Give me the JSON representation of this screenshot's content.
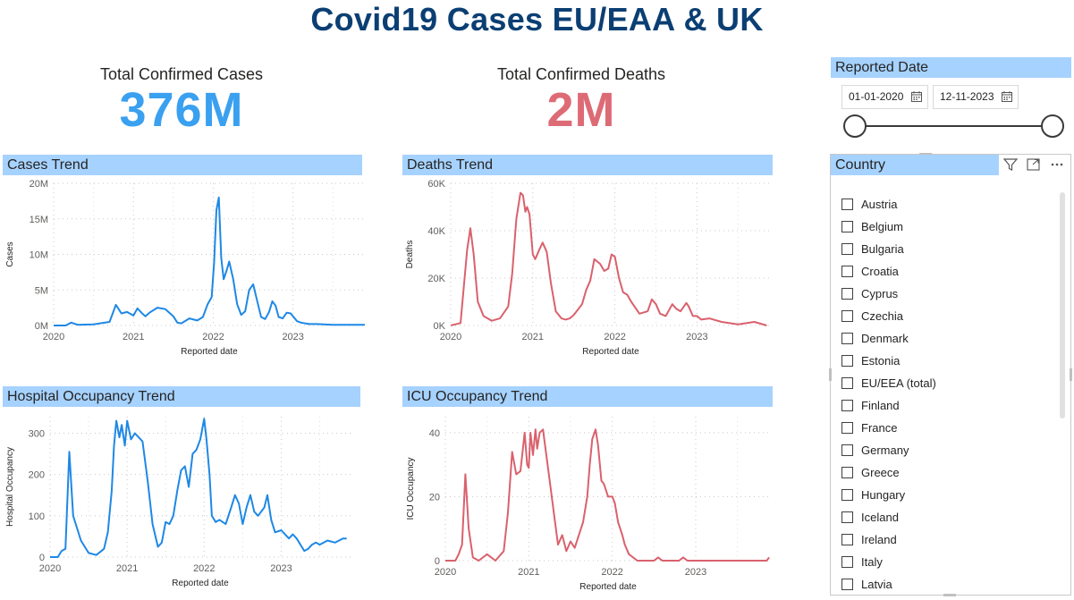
{
  "report_title": "Covid19 Cases EU/EAA & UK",
  "kpis": {
    "cases": {
      "label": "Total Confirmed Cases",
      "value": "376M",
      "color": "#3aa0f0"
    },
    "deaths": {
      "label": "Total Confirmed Deaths",
      "value": "2M",
      "color": "#dd6b76"
    }
  },
  "date_filter": {
    "title": "Reported Date",
    "start": "01-01-2020",
    "end": "12-11-2023",
    "start_icon": "calendar-icon",
    "end_icon": "calendar-icon",
    "range_selected_fraction": [
      0,
      1
    ]
  },
  "country_slicer": {
    "title": "Country",
    "tools": [
      "filter-icon",
      "focus-mode-icon",
      "more-options-icon"
    ],
    "items": [
      "Austria",
      "Belgium",
      "Bulgaria",
      "Croatia",
      "Cyprus",
      "Czechia",
      "Denmark",
      "Estonia",
      "EU/EEA (total)",
      "Finland",
      "France",
      "Germany",
      "Greece",
      "Hungary",
      "Iceland",
      "Ireland",
      "Italy",
      "Latvia"
    ]
  },
  "colors": {
    "blue": "#1e88e5",
    "red": "#d9616d",
    "header_band": "#a6d2ff",
    "title": "#0b3f73"
  },
  "charts": {
    "cases": {
      "header": "Cases Trend",
      "chart_data": {
        "type": "line",
        "xlabel": "Reported date",
        "ylabel": "Cases",
        "xticks": [
          "2020",
          "2021",
          "2022",
          "2023"
        ],
        "yticks": [
          "0M",
          "5M",
          "10M",
          "15M",
          "20M"
        ],
        "xlim": [
          2020,
          2023.9
        ],
        "ylim": [
          0,
          20000000
        ],
        "grid": "dotted",
        "color": "#1e88e5",
        "series": [
          {
            "x": [
              2020.0,
              2020.15,
              2020.22,
              2020.3,
              2020.5,
              2020.7,
              2020.78,
              2020.85,
              2020.92,
              2021.0,
              2021.05,
              2021.1,
              2021.15,
              2021.2,
              2021.3,
              2021.4,
              2021.5,
              2021.55,
              2021.6,
              2021.7,
              2021.8,
              2021.87,
              2021.93,
              2021.98,
              2022.01,
              2022.04,
              2022.07,
              2022.1,
              2022.13,
              2022.17,
              2022.2,
              2022.25,
              2022.3,
              2022.35,
              2022.4,
              2022.45,
              2022.5,
              2022.55,
              2022.6,
              2022.65,
              2022.7,
              2022.74,
              2022.78,
              2022.82,
              2022.87,
              2022.92,
              2022.97,
              2023.05,
              2023.1,
              2023.2,
              2023.3,
              2023.5,
              2023.7,
              2023.9
            ],
            "y": [
              0,
              0,
              400000,
              100000,
              150000,
              500000,
              2900000,
              1700000,
              1900000,
              1400000,
              2400000,
              1800000,
              1300000,
              1800000,
              2500000,
              2300000,
              1300000,
              400000,
              300000,
              1000000,
              700000,
              1200000,
              3000000,
              4000000,
              8800000,
              16200000,
              18000000,
              9500000,
              6500000,
              7800000,
              9000000,
              6500000,
              3000000,
              1500000,
              2000000,
              5000000,
              5800000,
              3500000,
              1200000,
              900000,
              1900000,
              3400000,
              2800000,
              1200000,
              1000000,
              1800000,
              1700000,
              600000,
              400000,
              200000,
              200000,
              100000,
              100000,
              100000
            ]
          }
        ]
      }
    },
    "deaths": {
      "header": "Deaths Trend",
      "chart_data": {
        "type": "line",
        "xlabel": "Reported date",
        "ylabel": "Deaths",
        "xticks": [
          "2020",
          "2021",
          "2022",
          "2023"
        ],
        "yticks": [
          "0K",
          "20K",
          "40K",
          "60K"
        ],
        "xlim": [
          2020,
          2023.9
        ],
        "ylim": [
          0,
          60000
        ],
        "grid": "dotted",
        "color": "#d9616d",
        "series": [
          {
            "x": [
              2020.0,
              2020.12,
              2020.2,
              2020.24,
              2020.28,
              2020.33,
              2020.4,
              2020.5,
              2020.6,
              2020.7,
              2020.75,
              2020.8,
              2020.85,
              2020.88,
              2020.91,
              2020.93,
              2020.96,
              2021.0,
              2021.03,
              2021.08,
              2021.12,
              2021.17,
              2021.22,
              2021.28,
              2021.35,
              2021.4,
              2021.45,
              2021.5,
              2021.6,
              2021.65,
              2021.7,
              2021.75,
              2021.82,
              2021.87,
              2021.92,
              2021.96,
              2022.0,
              2022.05,
              2022.1,
              2022.15,
              2022.2,
              2022.3,
              2022.4,
              2022.45,
              2022.5,
              2022.55,
              2022.62,
              2022.7,
              2022.75,
              2022.8,
              2022.87,
              2022.9,
              2022.95,
              2023.0,
              2023.05,
              2023.15,
              2023.3,
              2023.5,
              2023.7,
              2023.85
            ],
            "y": [
              0,
              1000,
              32000,
              41000,
              30000,
              10000,
              4000,
              2000,
              3000,
              8000,
              22000,
              45000,
              56000,
              55000,
              48000,
              50000,
              47000,
              30000,
              28000,
              32000,
              35000,
              31000,
              18000,
              6000,
              3000,
              2500,
              3000,
              4500,
              9000,
              15000,
              19000,
              28000,
              26000,
              23000,
              24000,
              30000,
              29000,
              20000,
              14000,
              13000,
              10000,
              5000,
              6000,
              11000,
              9000,
              5000,
              4000,
              9000,
              7000,
              6000,
              9500,
              8000,
              4000,
              4000,
              2500,
              3000,
              1500,
              500,
              1500,
              0
            ]
          }
        ]
      }
    },
    "hospital": {
      "header": "Hospital Occupancy Trend",
      "chart_data": {
        "type": "line",
        "xlabel": "Reported date",
        "ylabel": "Hospital Occupancy",
        "xticks": [
          "2020",
          "2021",
          "2022",
          "2023"
        ],
        "yticks": [
          "0",
          "100",
          "200",
          "300"
        ],
        "xlim": [
          2020,
          2023.9
        ],
        "ylim": [
          0,
          340
        ],
        "grid": "dotted",
        "color": "#1e88e5",
        "series": [
          {
            "x": [
              2020.0,
              2020.1,
              2020.15,
              2020.2,
              2020.25,
              2020.3,
              2020.4,
              2020.5,
              2020.6,
              2020.7,
              2020.75,
              2020.8,
              2020.83,
              2020.86,
              2020.9,
              2020.93,
              2020.97,
              2021.0,
              2021.05,
              2021.1,
              2021.15,
              2021.2,
              2021.27,
              2021.33,
              2021.4,
              2021.45,
              2021.5,
              2021.55,
              2021.6,
              2021.65,
              2021.7,
              2021.75,
              2021.8,
              2021.85,
              2021.9,
              2021.95,
              2022.0,
              2022.03,
              2022.07,
              2022.1,
              2022.15,
              2022.2,
              2022.28,
              2022.35,
              2022.4,
              2022.45,
              2022.5,
              2022.55,
              2022.6,
              2022.65,
              2022.7,
              2022.78,
              2022.82,
              2022.87,
              2022.92,
              2023.0,
              2023.05,
              2023.1,
              2023.15,
              2023.2,
              2023.3,
              2023.35,
              2023.4,
              2023.45,
              2023.5,
              2023.6,
              2023.7,
              2023.8,
              2023.85
            ],
            "y": [
              0,
              0,
              15,
              20,
              255,
              100,
              40,
              10,
              5,
              20,
              60,
              160,
              270,
              330,
              290,
              320,
              270,
              330,
              285,
              300,
              290,
              280,
              180,
              80,
              25,
              35,
              85,
              80,
              100,
              160,
              210,
              220,
              170,
              250,
              260,
              285,
              335,
              285,
              200,
              100,
              85,
              90,
              80,
              120,
              150,
              130,
              80,
              120,
              150,
              110,
              100,
              120,
              150,
              90,
              60,
              65,
              55,
              45,
              55,
              45,
              15,
              20,
              30,
              35,
              30,
              40,
              35,
              45,
              45
            ]
          }
        ]
      }
    },
    "icu": {
      "header": "ICU Occupancy Trend",
      "chart_data": {
        "type": "line",
        "xlabel": "Reported date",
        "ylabel": "ICU Occupancy",
        "xticks": [
          "2020",
          "2021",
          "2022",
          "2023"
        ],
        "yticks": [
          "0",
          "20",
          "40"
        ],
        "xlim": [
          2020,
          2023.9
        ],
        "ylim": [
          0,
          45
        ],
        "grid": "dotted",
        "color": "#d9616d",
        "series": [
          {
            "x": [
              2020.0,
              2020.12,
              2020.16,
              2020.2,
              2020.24,
              2020.28,
              2020.33,
              2020.4,
              2020.5,
              2020.6,
              2020.7,
              2020.75,
              2020.8,
              2020.85,
              2020.9,
              2020.95,
              2020.98,
              2021.0,
              2021.02,
              2021.05,
              2021.08,
              2021.1,
              2021.13,
              2021.17,
              2021.2,
              2021.25,
              2021.3,
              2021.35,
              2021.4,
              2021.45,
              2021.5,
              2021.55,
              2021.6,
              2021.65,
              2021.7,
              2021.73,
              2021.76,
              2021.8,
              2021.83,
              2021.87,
              2021.9,
              2021.95,
              2022.0,
              2022.03,
              2022.07,
              2022.12,
              2022.15,
              2022.2,
              2022.3,
              2022.5,
              2022.55,
              2022.6,
              2022.8,
              2022.85,
              2022.9,
              2023.0,
              2023.5,
              2023.85,
              2023.88
            ],
            "y": [
              0,
              0,
              2,
              5,
              27,
              10,
              1,
              0,
              2,
              0,
              3,
              15,
              34,
              27,
              28,
              40,
              30,
              29,
              40,
              33,
              41,
              35,
              40,
              41,
              35,
              25,
              15,
              5,
              8,
              3,
              6,
              4,
              8,
              12,
              20,
              30,
              38,
              41,
              36,
              25,
              24,
              20,
              20,
              18,
              12,
              8,
              5,
              2,
              0,
              0,
              1,
              0,
              0,
              1,
              0,
              0,
              0,
              0,
              1
            ]
          }
        ]
      }
    }
  }
}
